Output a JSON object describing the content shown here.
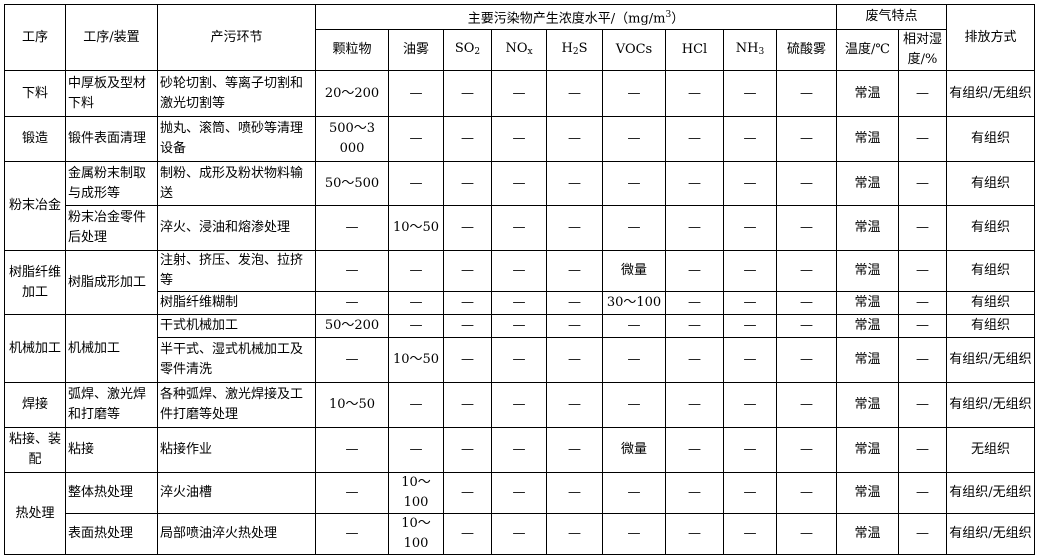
{
  "header": {
    "process": "工序",
    "device": "工序/装置",
    "stage": "产污环节",
    "pollutant_group": "主要污染物产生浓度水平/（mg/m",
    "pollutant_group_sup": "3",
    "pollutant_group_end": "）",
    "gas_group": "废气特点",
    "emission": "排放方式",
    "pollutants": [
      {
        "base": "颗粒物",
        "sub": ""
      },
      {
        "base": "油雾",
        "sub": ""
      },
      {
        "base": "SO",
        "sub": "2"
      },
      {
        "base": "NO",
        "sub": "x"
      },
      {
        "base": "H",
        "sub": "2",
        "tail": "S"
      },
      {
        "base": "VOCs",
        "sub": ""
      },
      {
        "base": "HCl",
        "sub": ""
      },
      {
        "base": "NH",
        "sub": "3"
      },
      {
        "base": "硫酸雾",
        "sub": ""
      }
    ],
    "temp": "温度/℃",
    "humidity": "相对湿度/%"
  },
  "rows": [
    {
      "process": "下料",
      "device": "中厚板及型材下料",
      "stage": "砂轮切割、等离子切割和激光切割等",
      "values": [
        "20～200",
        "—",
        "—",
        "—",
        "—",
        "—",
        "—",
        "—",
        "—",
        "常温",
        "—",
        "有组织/无组织"
      ]
    },
    {
      "process": "锻造",
      "device": "锻件表面清理",
      "stage": "抛丸、滚筒、喷砂等清理设备",
      "values": [
        "500～3 000",
        "—",
        "—",
        "—",
        "—",
        "—",
        "—",
        "—",
        "—",
        "常温",
        "—",
        "有组织"
      ]
    },
    {
      "process": "粉末冶金",
      "device": "金属粉末制取与成形等",
      "stage": "制粉、成形及粉状物料输送",
      "values": [
        "50～500",
        "—",
        "—",
        "—",
        "—",
        "—",
        "—",
        "—",
        "—",
        "常温",
        "—",
        "有组织"
      ]
    },
    {
      "device": "粉末冶金零件后处理",
      "stage": "淬火、浸油和熔渗处理",
      "values": [
        "—",
        "10～50",
        "—",
        "—",
        "—",
        "—",
        "—",
        "—",
        "—",
        "常温",
        "—",
        "有组织"
      ]
    },
    {
      "process": "树脂纤维加工",
      "device": "树脂成形加工",
      "stage": "注射、挤压、发泡、拉挤等",
      "values": [
        "—",
        "—",
        "—",
        "—",
        "—",
        "微量",
        "—",
        "—",
        "—",
        "常温",
        "—",
        "有组织"
      ]
    },
    {
      "stage": "树脂纤维糊制",
      "values": [
        "—",
        "—",
        "—",
        "—",
        "—",
        "30～100",
        "—",
        "—",
        "—",
        "常温",
        "—",
        "有组织"
      ]
    },
    {
      "process": "机械加工",
      "device": "机械加工",
      "stage": "干式机械加工",
      "values": [
        "50～200",
        "—",
        "—",
        "—",
        "—",
        "—",
        "—",
        "—",
        "—",
        "常温",
        "—",
        "有组织"
      ]
    },
    {
      "stage": "半干式、湿式机械加工及零件清洗",
      "values": [
        "—",
        "10～50",
        "—",
        "—",
        "—",
        "—",
        "—",
        "—",
        "—",
        "常温",
        "—",
        "有组织/无组织"
      ]
    },
    {
      "process": "焊接",
      "device": "弧焊、激光焊和打磨等",
      "stage": "各种弧焊、激光焊接及工件打磨等处理",
      "values": [
        "10～50",
        "—",
        "—",
        "—",
        "—",
        "—",
        "—",
        "—",
        "—",
        "常温",
        "—",
        "有组织/无组织"
      ]
    },
    {
      "process": "粘接、装配",
      "device": "粘接",
      "stage": "粘接作业",
      "values": [
        "—",
        "—",
        "—",
        "—",
        "—",
        "微量",
        "—",
        "—",
        "—",
        "常温",
        "—",
        "无组织"
      ]
    },
    {
      "process": "热处理",
      "device": "整体热处理",
      "stage": "淬火油槽",
      "values": [
        "—",
        "10～100",
        "—",
        "—",
        "—",
        "—",
        "—",
        "—",
        "—",
        "常温",
        "—",
        "有组织/无组织"
      ]
    },
    {
      "device": "表面热处理",
      "stage": "局部喷油淬火热处理",
      "values": [
        "—",
        "10～100",
        "—",
        "—",
        "—",
        "—",
        "—",
        "—",
        "—",
        "常温",
        "—",
        "有组织/无组织"
      ]
    }
  ]
}
